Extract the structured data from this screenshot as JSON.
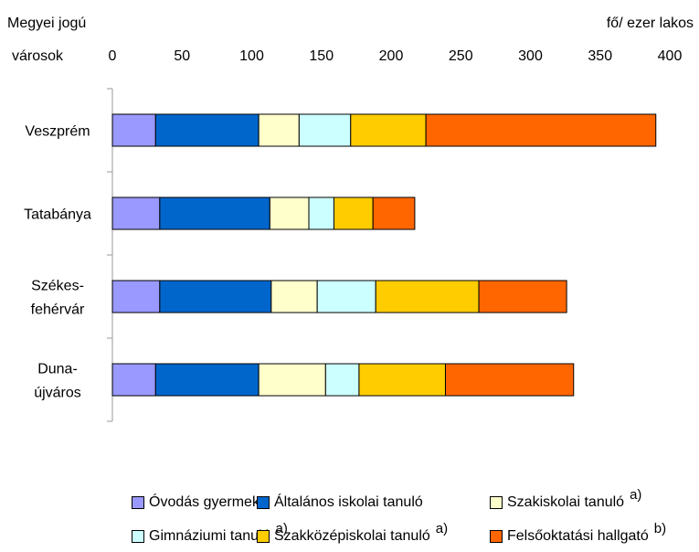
{
  "chart_data": {
    "type": "bar",
    "orientation": "horizontal",
    "stacked": true,
    "ylabel_line1": "Megyei jogú",
    "ylabel_line2": "városok",
    "xlabel": "fő/ ezer lakos",
    "xlim": [
      0,
      400
    ],
    "xticks": [
      "0",
      "50",
      "100",
      "150",
      "200",
      "250",
      "300",
      "350",
      "400"
    ],
    "categories": [
      [
        "Veszprém"
      ],
      [
        "Tatabánya"
      ],
      [
        "Székes-",
        "fehérvár"
      ],
      [
        "Duna-",
        "újváros"
      ]
    ],
    "series": [
      {
        "name": "Óvodás gyermek",
        "color": "#9999FF",
        "note": "",
        "values": [
          31,
          34,
          34,
          31
        ]
      },
      {
        "name": "Általános iskolai tanuló",
        "color": "#0066CC",
        "note": "",
        "values": [
          74,
          79,
          80,
          74
        ]
      },
      {
        "name": "Szakiskolai tanuló",
        "color": "#FFFFCC",
        "note": "a)",
        "values": [
          29,
          28,
          33,
          48
        ]
      },
      {
        "name": "Gimnáziumi tanuló",
        "color": "#CCFFFF",
        "note": "a)",
        "values": [
          37,
          18,
          42,
          24
        ]
      },
      {
        "name": "Szakközépiskolai tanuló",
        "color": "#FFCC00",
        "note": "a)",
        "values": [
          54,
          28,
          74,
          62
        ]
      },
      {
        "name": "Felsőoktatási hallgató",
        "color": "#FF6600",
        "note": "b)",
        "values": [
          165,
          30,
          63,
          92
        ]
      }
    ],
    "legend_position": "bottom",
    "grid": false
  }
}
